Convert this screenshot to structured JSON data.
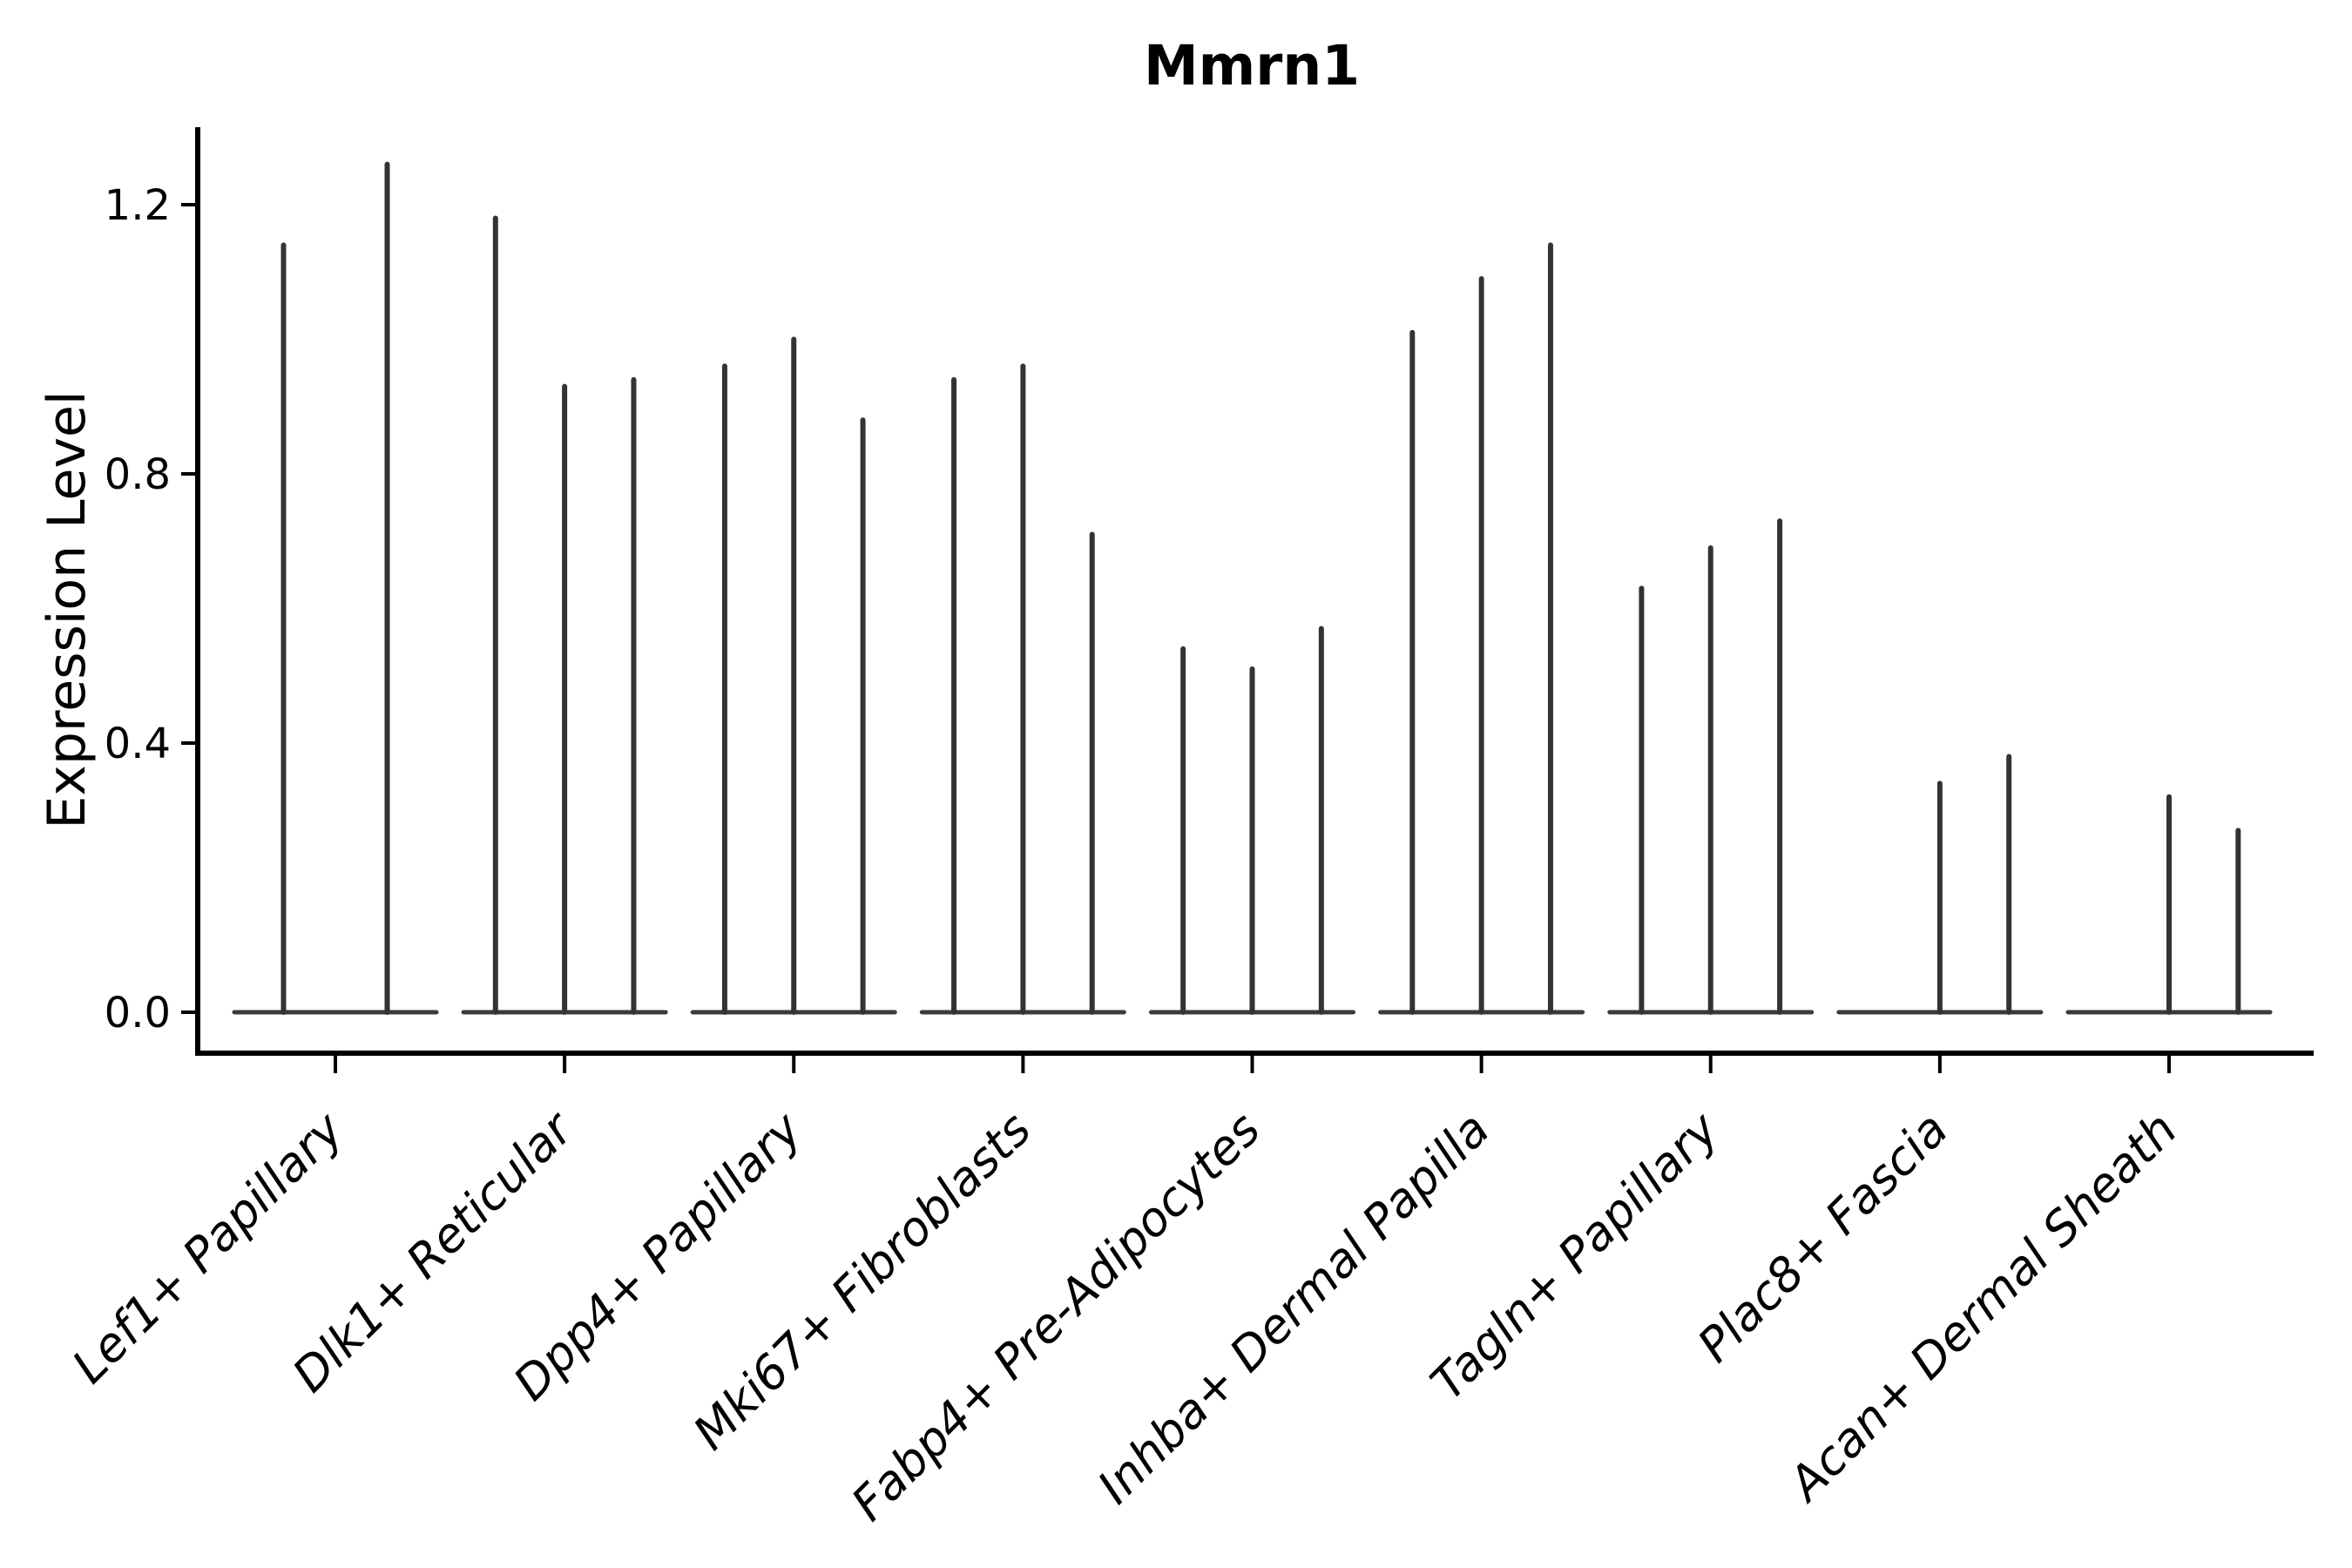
{
  "chart_data": {
    "type": "violin",
    "title": "Mmrn1",
    "ylabel": "Expression Level",
    "xlabel": "",
    "grid": false,
    "legend": "none",
    "ylim": [
      -0.06,
      1.32
    ],
    "ytick_labels": [
      "0.0",
      "0.4",
      "0.8",
      "1.2"
    ],
    "ytick_values": [
      0.0,
      0.4,
      0.8,
      1.2
    ],
    "xtick_rotation_deg": 45,
    "line_color": "#333333",
    "band_color": "#3a3a3a",
    "text_color": "#000000",
    "background_color": "#ffffff",
    "categories": [
      "Lef1+ Papillary",
      "Dlk1+ Reticular",
      "Dpp4+ Papillary",
      "Mki67+ Fibroblasts",
      "Fabp4+ Pre-Adipocytes",
      "Inhba+ Dermal Papilla",
      "Tagln+ Papillary",
      "Plac8+ Fascia",
      "Acan+ Dermal Sheath"
    ],
    "groups": [
      {
        "category": "Lef1+ Papillary",
        "violin_max_values": [
          1.14,
          1.26
        ]
      },
      {
        "category": "Dlk1+ Reticular",
        "violin_max_values": [
          1.18,
          0.93,
          0.94
        ]
      },
      {
        "category": "Dpp4+ Papillary",
        "violin_max_values": [
          0.96,
          1.0,
          0.88
        ]
      },
      {
        "category": "Mki67+ Fibroblasts",
        "violin_max_values": [
          0.94,
          0.96,
          0.71
        ]
      },
      {
        "category": "Fabp4+ Pre-Adipocytes",
        "violin_max_values": [
          0.54,
          0.51,
          0.57
        ]
      },
      {
        "category": "Inhba+ Dermal Papilla",
        "violin_max_values": [
          1.01,
          1.09,
          1.14
        ]
      },
      {
        "category": "Tagln+ Papillary",
        "violin_max_values": [
          0.63,
          0.69,
          0.73
        ]
      },
      {
        "category": "Plac8+ Fascia",
        "violin_max_values": [
          0.0,
          0.34,
          0.38
        ]
      },
      {
        "category": "Acan+ Dermal Sheath",
        "violin_max_values": [
          0.0,
          0.32,
          0.27
        ]
      }
    ]
  }
}
